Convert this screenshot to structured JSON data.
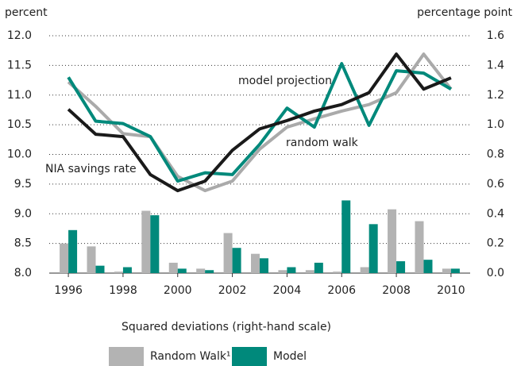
{
  "chart_data": {
    "type": "line",
    "y_label": "percent",
    "y2_label": "percentage point",
    "caption": "Squared deviations (right-hand scale)",
    "x": [
      1996,
      1997,
      1998,
      1999,
      2000,
      2001,
      2002,
      2003,
      2004,
      2005,
      2006,
      2007,
      2008,
      2009,
      2010
    ],
    "xlim": [
      1995.3,
      2010.7
    ],
    "xticks": [
      1996,
      1998,
      2000,
      2002,
      2004,
      2006,
      2008,
      2010
    ],
    "ylim": [
      8,
      12
    ],
    "yticks": [
      {
        "value": 8,
        "label": "8.0"
      },
      {
        "value": 8.5,
        "label": "8.5"
      },
      {
        "value": 9,
        "label": "9.0"
      },
      {
        "value": 9.5,
        "label": "9.5"
      },
      {
        "value": 10,
        "label": "10.0"
      },
      {
        "value": 10.5,
        "label": "10.5"
      },
      {
        "value": 11,
        "label": "11.0"
      },
      {
        "value": 11.5,
        "label": "11.5"
      },
      {
        "value": 12,
        "label": "12.0"
      }
    ],
    "y2lim": [
      0,
      1.6
    ],
    "y2ticks": [
      {
        "value": 0,
        "label": "0.0"
      },
      0.2,
      0.4,
      0.6,
      0.8,
      {
        "value": 1,
        "label": "1.0"
      },
      1.2,
      1.4,
      1.6
    ],
    "grid": true,
    "series": [
      {
        "name": "NIA savings rate",
        "type": "line",
        "color": "#1a1a1a",
        "values": [
          10.76,
          10.34,
          10.3,
          9.66,
          9.39,
          9.55,
          10.07,
          10.43,
          10.57,
          10.73,
          10.84,
          11.04,
          11.69,
          11.1,
          11.29
        ]
      },
      {
        "name": "model projection",
        "type": "line",
        "color": "#00897b",
        "values": [
          11.3,
          10.56,
          10.52,
          10.3,
          9.55,
          9.69,
          9.66,
          10.17,
          10.78,
          10.46,
          11.53,
          10.49,
          11.41,
          11.37,
          11.1
        ]
      },
      {
        "name": "random walk",
        "type": "line",
        "color": "#aaaaaa",
        "values": [
          11.22,
          10.81,
          10.35,
          10.3,
          9.63,
          9.39,
          9.55,
          10.09,
          10.46,
          10.6,
          10.73,
          10.84,
          11.04,
          11.69,
          11.1
        ]
      },
      {
        "name": "Random Walk¹",
        "type": "bar",
        "axis": "y2",
        "color": "#b3b3b3",
        "values": [
          0.2,
          0.18,
          0.01,
          0.42,
          0.07,
          0.03,
          0.27,
          0.13,
          0.02,
          0.02,
          0.01,
          0.04,
          0.43,
          0.35,
          0.03
        ]
      },
      {
        "name": "Model",
        "type": "bar",
        "axis": "y2",
        "color": "#00897b",
        "values": [
          0.29,
          0.05,
          0.04,
          0.39,
          0.03,
          0.02,
          0.17,
          0.1,
          0.04,
          0.07,
          0.49,
          0.33,
          0.08,
          0.09,
          0.03
        ]
      }
    ]
  }
}
